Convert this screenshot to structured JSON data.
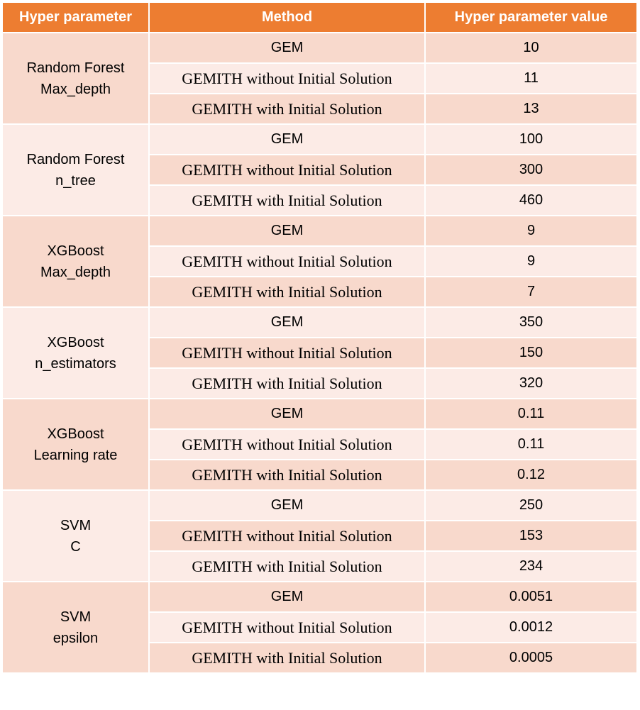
{
  "header": {
    "param": "Hyper parameter",
    "method": "Method",
    "value": "Hyper parameter value"
  },
  "colors": {
    "header_bg": "#ed7d31",
    "row_dark": "#f8d9cc",
    "row_light": "#fcebe6"
  },
  "groups": [
    {
      "line1": "Random Forest",
      "line2": "Max_depth",
      "rows": [
        {
          "method": "GEM",
          "value": "10"
        },
        {
          "method": "GEMITH without Initial Solution",
          "value": "11"
        },
        {
          "method": "GEMITH with Initial Solution",
          "value": "13"
        }
      ]
    },
    {
      "line1": "Random Forest",
      "line2": "n_tree",
      "rows": [
        {
          "method": "GEM",
          "value": "100"
        },
        {
          "method": "GEMITH without Initial Solution",
          "value": "300"
        },
        {
          "method": "GEMITH with Initial Solution",
          "value": "460"
        }
      ]
    },
    {
      "line1": "XGBoost",
      "line2": "Max_depth",
      "rows": [
        {
          "method": "GEM",
          "value": "9"
        },
        {
          "method": "GEMITH without Initial Solution",
          "value": "9"
        },
        {
          "method": "GEMITH with Initial Solution",
          "value": "7"
        }
      ]
    },
    {
      "line1": "XGBoost",
      "line2": "n_estimators",
      "rows": [
        {
          "method": "GEM",
          "value": "350"
        },
        {
          "method": "GEMITH without Initial Solution",
          "value": "150"
        },
        {
          "method": "GEMITH with Initial Solution",
          "value": "320"
        }
      ]
    },
    {
      "line1": "XGBoost",
      "line2": "Learning rate",
      "rows": [
        {
          "method": "GEM",
          "value": "0.11"
        },
        {
          "method": "GEMITH without Initial Solution",
          "value": "0.11"
        },
        {
          "method": "GEMITH with Initial Solution",
          "value": "0.12"
        }
      ]
    },
    {
      "line1": "SVM",
      "line2": "C",
      "rows": [
        {
          "method": "GEM",
          "value": "250"
        },
        {
          "method": "GEMITH without Initial Solution",
          "value": "153"
        },
        {
          "method": "GEMITH with Initial Solution",
          "value": "234"
        }
      ]
    },
    {
      "line1": "SVM",
      "line2": "epsilon",
      "rows": [
        {
          "method": "GEM",
          "value": "0.0051"
        },
        {
          "method": "GEMITH without Initial Solution",
          "value": "0.0012"
        },
        {
          "method": "GEMITH with Initial Solution",
          "value": "0.0005"
        }
      ]
    }
  ]
}
